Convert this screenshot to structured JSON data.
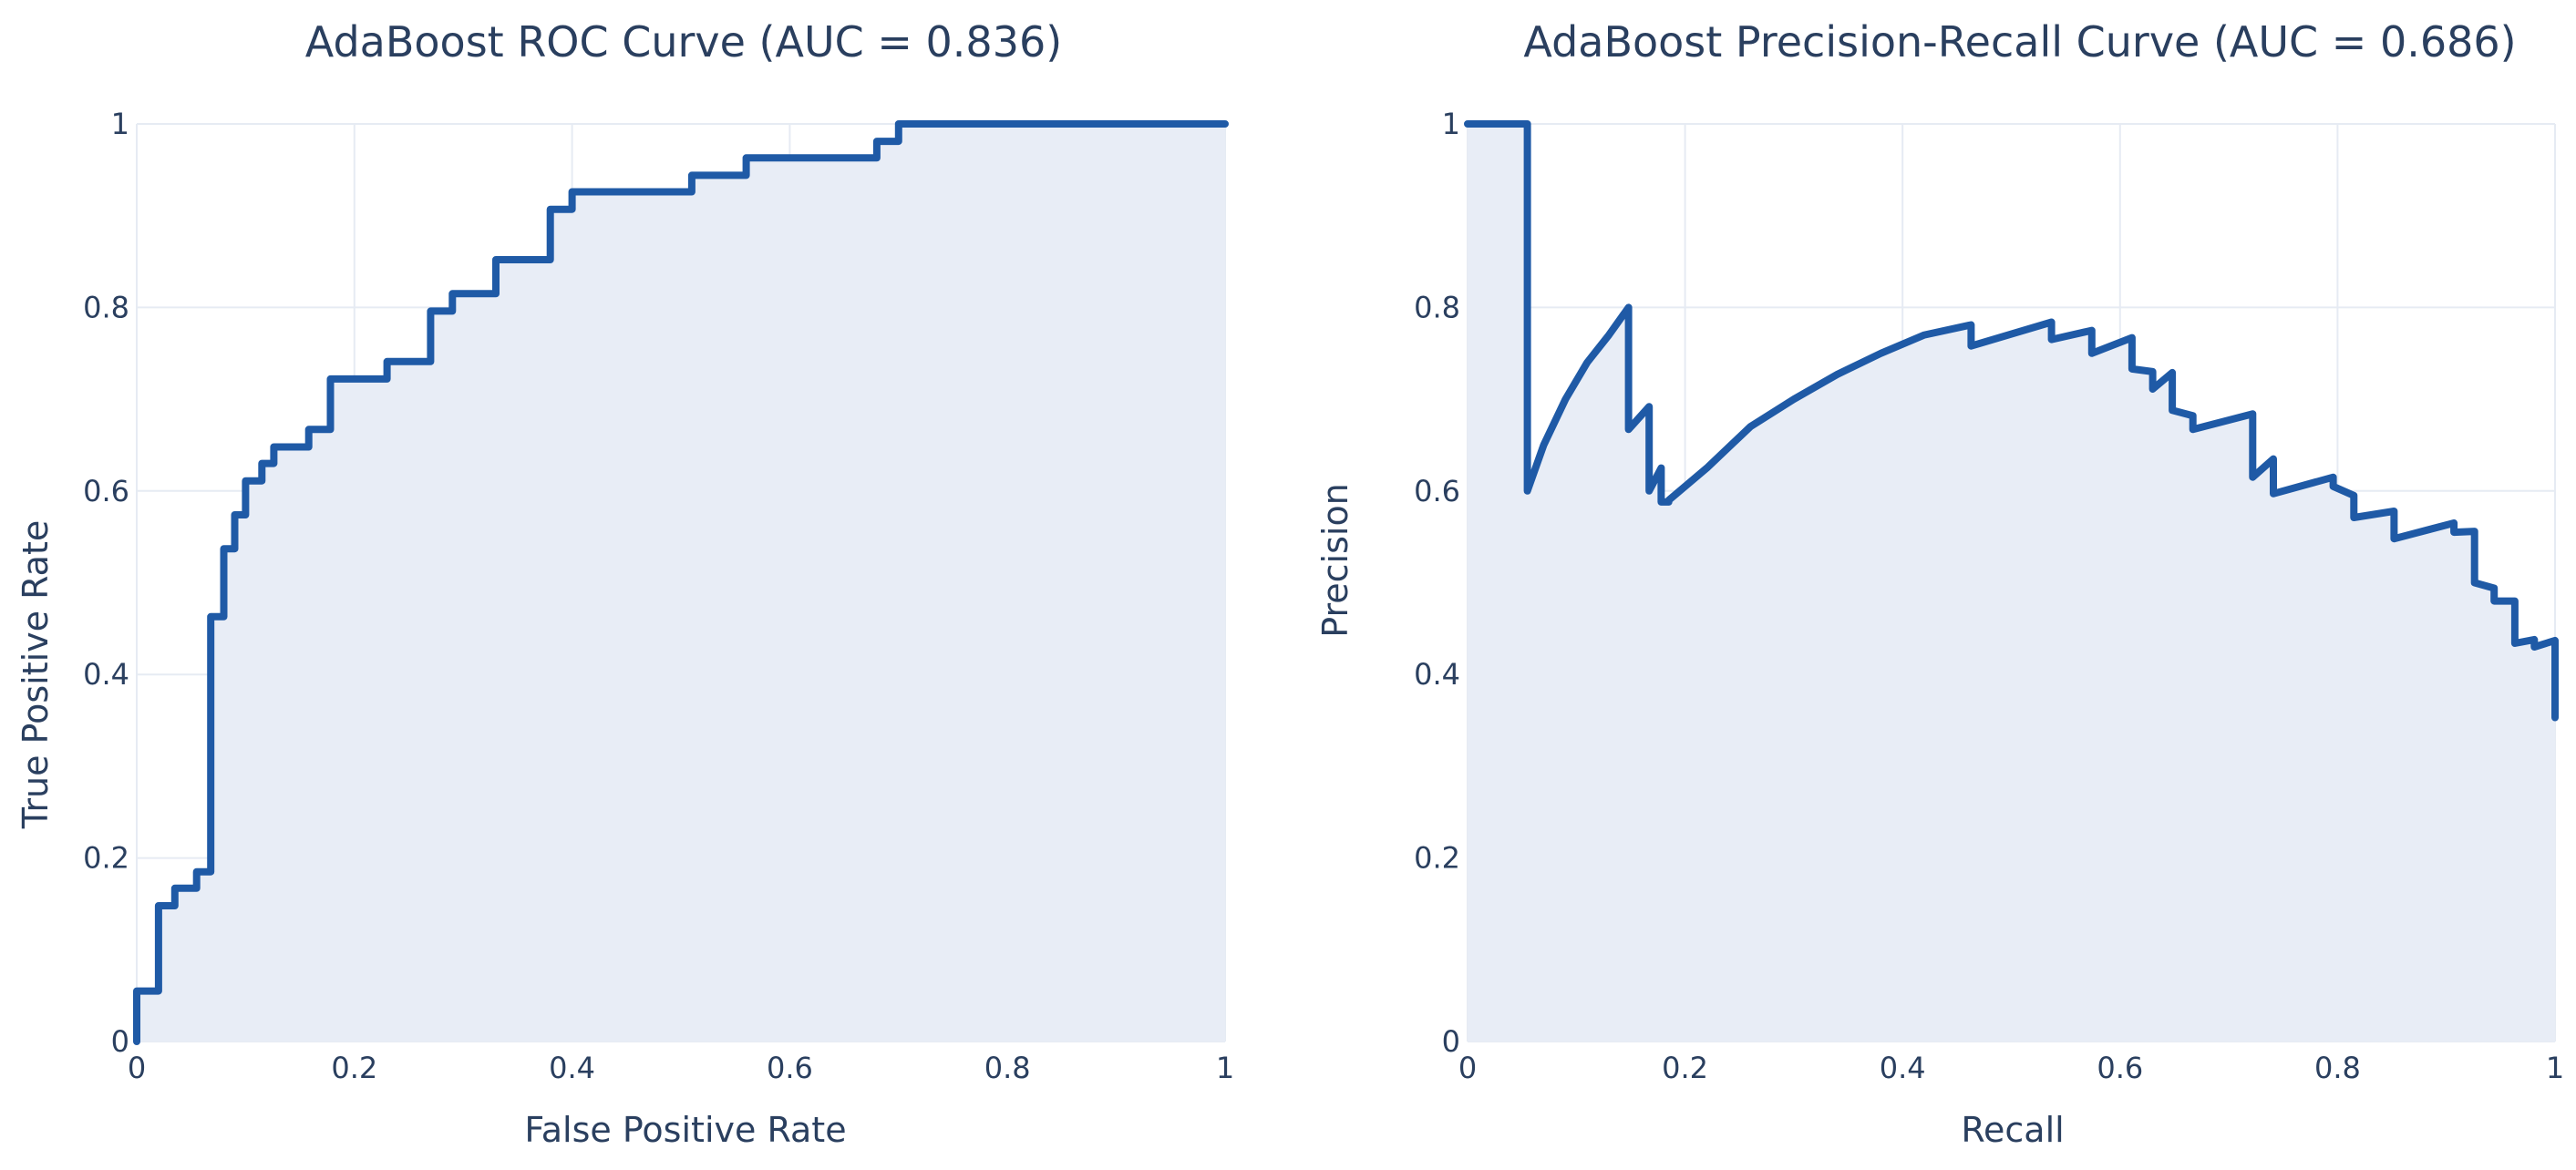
{
  "chart_data": [
    {
      "type": "area",
      "title": "AdaBoost ROC Curve (AUC = 0.836)",
      "xlabel": "False Positive Rate",
      "ylabel": "True Positive Rate",
      "xlim": [
        0,
        1
      ],
      "ylim": [
        0,
        1
      ],
      "xticks": [
        0,
        0.2,
        0.4,
        0.6,
        0.8,
        1
      ],
      "xtick_labels": [
        "0",
        "0.2",
        "0.4",
        "0.6",
        "0.8",
        "1"
      ],
      "yticks": [
        0,
        0.2,
        0.4,
        0.6,
        0.8,
        1
      ],
      "ytick_labels": [
        "0",
        "0.2",
        "0.4",
        "0.6",
        "0.8",
        "1"
      ],
      "grid": true,
      "line_color": "#1f5aa6",
      "fill_color": "#e8edf6",
      "x": [
        0,
        0,
        0.02,
        0.02,
        0.035,
        0.035,
        0.055,
        0.055,
        0.068,
        0.068,
        0.07,
        0.07,
        0.08,
        0.08,
        0.09,
        0.09,
        0.1,
        0.1,
        0.115,
        0.115,
        0.126,
        0.126,
        0.158,
        0.158,
        0.178,
        0.178,
        0.23,
        0.23,
        0.27,
        0.27,
        0.29,
        0.29,
        0.33,
        0.33,
        0.38,
        0.38,
        0.4,
        0.4,
        0.51,
        0.51,
        0.56,
        0.56,
        0.68,
        0.68,
        0.7,
        0.7,
        1.0
      ],
      "y": [
        0,
        0.055,
        0.055,
        0.148,
        0.148,
        0.167,
        0.167,
        0.185,
        0.185,
        0.463,
        0.463,
        0.463,
        0.463,
        0.537,
        0.537,
        0.574,
        0.574,
        0.611,
        0.611,
        0.63,
        0.63,
        0.648,
        0.648,
        0.667,
        0.667,
        0.722,
        0.722,
        0.741,
        0.741,
        0.796,
        0.796,
        0.815,
        0.815,
        0.852,
        0.852,
        0.907,
        0.907,
        0.926,
        0.926,
        0.944,
        0.944,
        0.963,
        0.963,
        0.981,
        0.981,
        1.0,
        1.0
      ]
    },
    {
      "type": "area",
      "title": "AdaBoost Precision-Recall Curve (AUC = 0.686)",
      "xlabel": "Recall",
      "ylabel": "Precision",
      "xlim": [
        0,
        1
      ],
      "ylim": [
        0,
        1
      ],
      "xticks": [
        0,
        0.2,
        0.4,
        0.6,
        0.8,
        1
      ],
      "xtick_labels": [
        "0",
        "0.2",
        "0.4",
        "0.6",
        "0.8",
        "1"
      ],
      "yticks": [
        0,
        0.2,
        0.4,
        0.6,
        0.8,
        1
      ],
      "ytick_labels": [
        "0",
        "0.2",
        "0.4",
        "0.6",
        "0.8",
        "1"
      ],
      "grid": true,
      "line_color": "#1f5aa6",
      "fill_color": "#e8edf6",
      "x": [
        0,
        0.055,
        0.055,
        0.07,
        0.09,
        0.11,
        0.13,
        0.148,
        0.148,
        0.167,
        0.167,
        0.178,
        0.178,
        0.185,
        0.185,
        0.22,
        0.26,
        0.3,
        0.34,
        0.38,
        0.42,
        0.463,
        0.463,
        0.537,
        0.537,
        0.574,
        0.574,
        0.611,
        0.611,
        0.63,
        0.63,
        0.648,
        0.648,
        0.667,
        0.667,
        0.722,
        0.722,
        0.741,
        0.741,
        0.796,
        0.796,
        0.815,
        0.815,
        0.852,
        0.852,
        0.907,
        0.907,
        0.926,
        0.926,
        0.944,
        0.944,
        0.963,
        0.963,
        0.981,
        0.981,
        1.0,
        1.0
      ],
      "y": [
        1.0,
        1.0,
        0.6,
        0.65,
        0.7,
        0.74,
        0.77,
        0.8,
        0.667,
        0.692,
        0.6,
        0.625,
        0.588,
        0.588,
        0.59,
        0.625,
        0.67,
        0.7,
        0.727,
        0.75,
        0.77,
        0.781,
        0.758,
        0.784,
        0.765,
        0.775,
        0.75,
        0.767,
        0.733,
        0.73,
        0.711,
        0.729,
        0.688,
        0.682,
        0.667,
        0.684,
        0.615,
        0.635,
        0.597,
        0.615,
        0.605,
        0.595,
        0.571,
        0.578,
        0.548,
        0.565,
        0.555,
        0.556,
        0.5,
        0.494,
        0.48,
        0.48,
        0.434,
        0.438,
        0.43,
        0.437,
        0.353
      ]
    }
  ]
}
